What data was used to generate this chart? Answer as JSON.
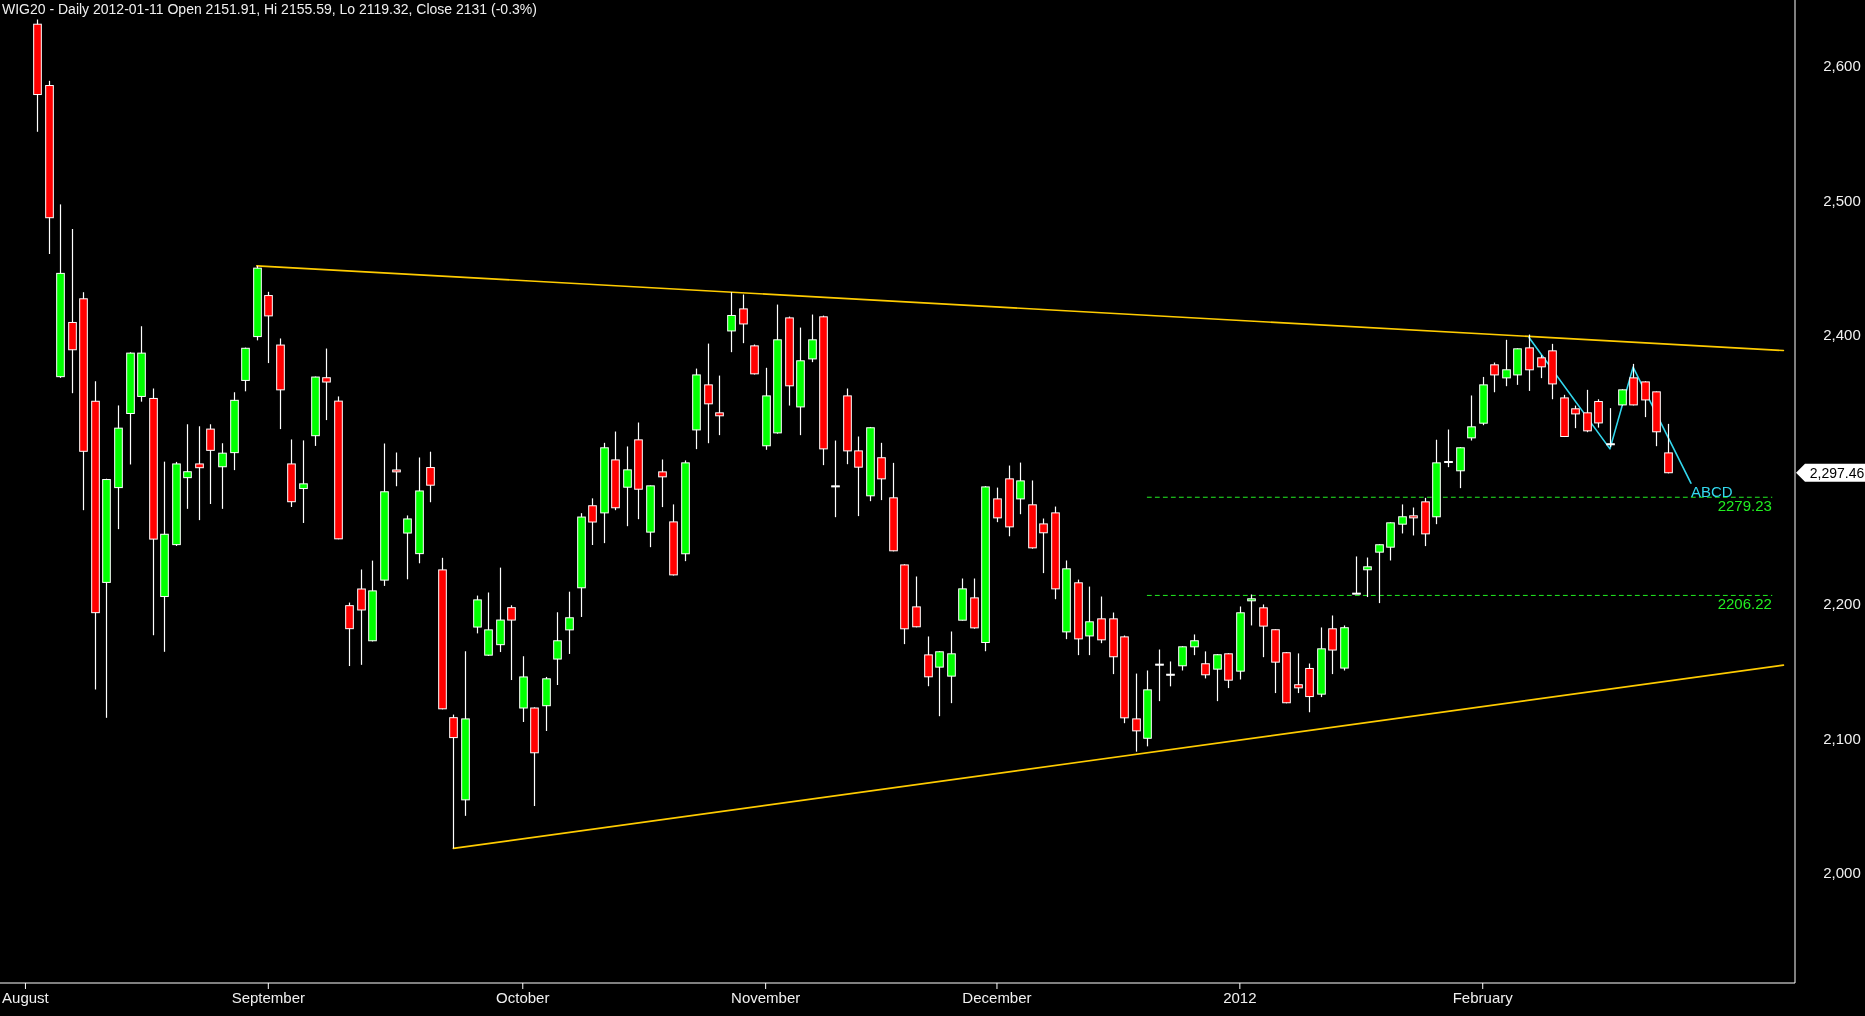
{
  "chart_data": {
    "type": "candlestick",
    "title": "WIG20 - Daily 2012-01-11 Open 2151.91, Hi 2155.59, Lo 2119.32, Close 2131 (-0.3%)",
    "categories": [
      "August",
      null,
      null,
      null,
      null,
      null,
      null,
      null,
      null,
      null,
      null,
      null,
      null,
      null,
      null,
      null,
      null,
      null,
      null,
      null,
      null,
      "September",
      null,
      null,
      null,
      null,
      null,
      null,
      null,
      null,
      null,
      null,
      null,
      null,
      null,
      null,
      null,
      null,
      null,
      null,
      null,
      null,
      null,
      "October",
      null,
      null,
      null,
      null,
      null,
      null,
      null,
      null,
      null,
      null,
      null,
      null,
      null,
      null,
      null,
      null,
      null,
      null,
      null,
      null,
      "November",
      null,
      null,
      null,
      null,
      null,
      null,
      null,
      null,
      null,
      null,
      null,
      null,
      null,
      null,
      null,
      null,
      null,
      null,
      null,
      "December",
      null,
      null,
      null,
      null,
      null,
      null,
      null,
      null,
      null,
      null,
      null,
      null,
      null,
      null,
      null,
      null,
      null,
      null,
      null,
      null,
      "2012",
      null,
      null,
      null,
      null,
      null,
      null,
      null,
      null,
      null,
      null,
      null,
      null,
      null,
      null,
      null,
      null,
      null,
      null,
      null,
      null,
      "February",
      null,
      null,
      null,
      null,
      null,
      null,
      null,
      null,
      null,
      null,
      null,
      null,
      null,
      null,
      null,
      null,
      null,
      null,
      null,
      null,
      null,
      null,
      null,
      null,
      null,
      null
    ],
    "ohlc": [
      null,
      [
        2631.0,
        2634.5,
        2551.0,
        2578.7
      ],
      [
        2585.4,
        2588.9,
        2460.1,
        2487.1
      ],
      [
        2368.9,
        2497.0,
        2368.0,
        2445.7
      ],
      [
        2409.2,
        2478.7,
        2356.6,
        2388.9
      ],
      [
        2426.8,
        2431.7,
        2269.6,
        2313.4
      ],
      [
        2350.6,
        2365.4,
        2136.2,
        2193.4
      ],
      [
        2215.9,
        2293.0,
        2115.2,
        2292.4
      ],
      [
        2286.4,
        2347.5,
        2255.5,
        2330.6
      ],
      [
        2341.5,
        2387.0,
        2303.6,
        2386.4
      ],
      [
        2354.2,
        2406.4,
        2350.3,
        2386.4
      ],
      [
        2352.7,
        2360.1,
        2176.6,
        2248.1
      ],
      [
        2205.4,
        2305.7,
        2164.3,
        2251.7
      ],
      [
        2244.0,
        2305.5,
        2243.0,
        2304.0
      ],
      [
        2293.8,
        2333.5,
        2270.6,
        2298.2
      ],
      [
        2304.0,
        2332.0,
        2262.2,
        2301.2
      ],
      [
        2329.9,
        2333.5,
        2274.2,
        2314.1
      ],
      [
        2301.9,
        2319.4,
        2270.6,
        2312.0
      ],
      [
        2312.4,
        2357.3,
        2299.4,
        2351.3
      ],
      [
        2366.1,
        2390.5,
        2358.0,
        2390.0
      ],
      [
        2398.7,
        2451.3,
        2395.9,
        2449.6
      ],
      [
        2429.2,
        2432.0,
        2379.0,
        2414.1
      ],
      [
        2392.4,
        2397.3,
        2329.9,
        2359.1
      ],
      [
        2304.0,
        2322.2,
        2272.0,
        2275.9
      ],
      [
        2285.7,
        2321.5,
        2260.1,
        2289.2
      ],
      [
        2325.0,
        2369.0,
        2317.4,
        2368.6
      ],
      [
        2368.1,
        2389.8,
        2336.6,
        2364.9
      ],
      [
        2350.7,
        2354.2,
        2248.0,
        2248.3
      ],
      [
        2198.6,
        2200.9,
        2153.7,
        2181.5
      ],
      [
        2211.0,
        2225.5,
        2154.6,
        2195.4
      ],
      [
        2172.5,
        2232.1,
        2172.0,
        2209.6
      ],
      [
        2217.6,
        2319.2,
        2213.3,
        2283.3
      ],
      [
        2299.5,
        2312.5,
        2287.4,
        2298.1
      ],
      [
        2252.6,
        2265.7,
        2218.2,
        2263.1
      ],
      [
        2237.3,
        2308.8,
        2230.1,
        2283.9
      ],
      [
        2301.3,
        2313.1,
        2275.5,
        2288.2
      ],
      [
        2225.2,
        2234.2,
        2121.5,
        2121.9
      ],
      [
        2115.3,
        2117.6,
        2018.1,
        2100.5
      ],
      [
        2054.2,
        2164.7,
        2042.3,
        2114.4
      ],
      [
        2182.7,
        2206.1,
        2178.0,
        2202.9
      ],
      [
        2161.8,
        2208.4,
        2161.2,
        2180.6
      ],
      [
        2169.6,
        2226.9,
        2164.1,
        2187.9
      ],
      [
        2197.1,
        2198.9,
        2143.3,
        2187.9
      ],
      [
        2122.5,
        2161.0,
        2112.1,
        2145.6
      ],
      [
        2122.5,
        2123.0,
        2049.6,
        2089.2
      ],
      [
        2124.2,
        2145.6,
        2105.4,
        2144.2
      ],
      [
        2158.9,
        2193.7,
        2139.6,
        2172.5
      ],
      [
        2180.6,
        2209.0,
        2162.7,
        2189.6
      ],
      [
        2211.9,
        2267.4,
        2190.2,
        2264.5
      ],
      [
        2272.9,
        2278.4,
        2243.7,
        2260.8
      ],
      [
        2267.6,
        2319.7,
        2245.1,
        2316.0
      ],
      [
        2307.0,
        2328.1,
        2269.6,
        2271.4
      ],
      [
        2286.7,
        2317.0,
        2257.7,
        2299.6
      ],
      [
        2321.9,
        2334.8,
        2262.9,
        2285.2
      ],
      [
        2253.3,
        2288.0,
        2242.1,
        2287.7
      ],
      [
        2298.1,
        2307.3,
        2271.9,
        2294.4
      ],
      [
        2260.9,
        2273.9,
        2221.0,
        2221.5
      ],
      [
        2237.2,
        2306.6,
        2231.7,
        2304.8
      ],
      [
        2329.3,
        2374.9,
        2315.0,
        2370.2
      ],
      [
        2362.8,
        2393.5,
        2319.4,
        2348.7
      ],
      [
        2342.0,
        2369.7,
        2325.4,
        2339.8
      ],
      [
        2402.9,
        2431.7,
        2387.1,
        2414.4
      ],
      [
        2419.3,
        2430.0,
        2393.8,
        2408.1
      ],
      [
        2391.8,
        2392.8,
        2370.5,
        2371.0
      ],
      [
        2317.5,
        2375.5,
        2314.5,
        2354.6
      ],
      [
        2327.1,
        2422.5,
        2326.5,
        2396.3
      ],
      [
        2412.6,
        2413.6,
        2347.4,
        2362.1
      ],
      [
        2346.4,
        2405.4,
        2325.4,
        2380.7
      ],
      [
        2382.1,
        2415.1,
        2379.7,
        2396.3
      ],
      [
        2413.4,
        2414.3,
        2303.1,
        2315.2
      ],
      [
        2287.7,
        2321.4,
        2264.4,
        2287.7
      ],
      [
        2354.6,
        2360.1,
        2303.8,
        2313.7
      ],
      [
        2313.7,
        2324.4,
        2265.2,
        2301.6
      ],
      [
        2280.3,
        2331.5,
        2276.3,
        2330.9
      ],
      [
        2308.6,
        2319.7,
        2277.1,
        2292.9
      ],
      [
        2278.8,
        2304.8,
        2239.0,
        2239.4
      ],
      [
        2228.9,
        2229.4,
        2170.0,
        2181.4
      ],
      [
        2197.7,
        2220.3,
        2182.5,
        2182.9
      ],
      [
        2162.0,
        2175.7,
        2138.7,
        2145.7
      ],
      [
        2152.9,
        2164.8,
        2116.4,
        2164.3
      ],
      [
        2146.2,
        2179.4,
        2126.1,
        2162.8
      ],
      [
        2187.8,
        2218.8,
        2187.5,
        2211.1
      ],
      [
        2204.4,
        2218.8,
        2181.5,
        2182.1
      ],
      [
        2171.2,
        2287.5,
        2164.7,
        2286.9
      ],
      [
        2278.0,
        2286.4,
        2260.7,
        2263.9
      ],
      [
        2292.9,
        2302.8,
        2250.2,
        2257.2
      ],
      [
        2278.0,
        2305.0,
        2266.6,
        2291.4
      ],
      [
        2273.6,
        2291.7,
        2241.0,
        2241.6
      ],
      [
        2259.4,
        2263.4,
        2222.8,
        2252.8
      ],
      [
        2267.6,
        2272.3,
        2203.4,
        2211.1
      ],
      [
        2179.1,
        2232.2,
        2173.7,
        2226.0
      ],
      [
        2215.6,
        2218.0,
        2161.8,
        2173.9
      ],
      [
        2176.1,
        2212.8,
        2161.8,
        2186.6
      ],
      [
        2188.8,
        2205.4,
        2170.7,
        2173.2
      ],
      [
        2188.8,
        2193.5,
        2147.7,
        2160.6
      ],
      [
        2175.4,
        2176.4,
        2111.2,
        2115.2
      ],
      [
        2114.4,
        2148.1,
        2090.0,
        2105.5
      ],
      [
        2100.0,
        2150.4,
        2094.0,
        2136.0
      ],
      [
        2155.1,
        2166.0,
        2127.6,
        2155.1
      ],
      [
        2147.6,
        2157.1,
        2138.6,
        2147.6
      ],
      [
        2153.9,
        2168.5,
        2150.4,
        2168.0
      ],
      [
        2168.0,
        2177.2,
        2161.8,
        2172.5
      ],
      [
        2155.4,
        2164.6,
        2144.5,
        2147.2
      ],
      [
        2151.4,
        2162.6,
        2127.6,
        2162.1
      ],
      [
        2162.8,
        2163.3,
        2137.3,
        2143.2
      ],
      [
        2149.9,
        2198.0,
        2143.7,
        2193.3
      ],
      [
        2202.2,
        2206.9,
        2183.9,
        2203.7
      ],
      [
        2197.0,
        2199.5,
        2160.3,
        2183.4
      ],
      [
        2180.7,
        2181.0,
        2133.6,
        2156.6
      ],
      [
        2163.6,
        2164.0,
        2126.0,
        2126.4
      ],
      [
        2139.8,
        2163.1,
        2133.6,
        2137.5
      ],
      [
        2151.91,
        2155.59,
        2119.32,
        2131
      ],
      [
        2132.8,
        2182.4,
        2130.6,
        2166.5
      ],
      [
        2181.4,
        2191.3,
        2147.7,
        2165.6
      ],
      [
        2152.2,
        2183.9,
        2150.4,
        2182.2
      ],
      [
        2207.9,
        2235.2,
        2207.5,
        2207.9
      ],
      [
        2225.3,
        2234.4,
        2205.0,
        2227.5
      ],
      [
        2238.4,
        2244.3,
        2200.5,
        2243.9
      ],
      [
        2242.1,
        2260.6,
        2232.2,
        2260.2
      ],
      [
        2259.2,
        2273.9,
        2252.3,
        2264.7
      ],
      [
        2265.4,
        2271.6,
        2250.8,
        2263.9
      ],
      [
        2275.8,
        2278.8,
        2242.9,
        2252.0
      ],
      [
        2264.7,
        2322.0,
        2259.2,
        2304.8
      ],
      [
        2305.8,
        2329.6,
        2301.6,
        2305.8
      ],
      [
        2298.9,
        2316.5,
        2286.0,
        2316.0
      ],
      [
        2323.4,
        2354.9,
        2321.4,
        2331.6
      ],
      [
        2334.3,
        2368.7,
        2332.8,
        2362.8
      ],
      [
        2377.7,
        2379.4,
        2357.3,
        2370.2
      ],
      [
        2368.0,
        2396.3,
        2361.8,
        2374.0
      ],
      [
        2370.2,
        2390.0,
        2362.8,
        2389.6
      ],
      [
        2390.3,
        2400.2,
        2358.3,
        2374.0
      ],
      [
        2382.9,
        2384.9,
        2367.8,
        2376.2
      ],
      [
        2388.1,
        2393.3,
        2352.1,
        2363.5
      ],
      [
        2353.1,
        2355.4,
        2324.0,
        2324.4
      ],
      [
        2345.0,
        2347.4,
        2330.6,
        2341.2
      ],
      [
        2342.0,
        2359.1,
        2327.6,
        2328.6
      ],
      [
        2350.4,
        2352.1,
        2331.0,
        2334.5
      ],
      [
        2319.0,
        2345.5,
        2316.5,
        2319.0
      ],
      [
        2347.9,
        2359.5,
        2347.5,
        2359.1
      ],
      [
        2368.0,
        2378.4,
        2347.5,
        2347.9
      ],
      [
        2365.0,
        2365.5,
        2338.8,
        2351.6
      ],
      [
        2357.6,
        2357.9,
        2317.2,
        2327.9
      ],
      [
        2312.2,
        2333.8,
        2297.0,
        2297.46
      ],
      null,
      null,
      null,
      null,
      null,
      null,
      null,
      null,
      null,
      null
    ],
    "series": [
      {
        "type": "line",
        "color": "#ffcc00",
        "line_style": "solid",
        "values": [
          null,
          null,
          null,
          null,
          null,
          null,
          null,
          null,
          null,
          null,
          null,
          null,
          null,
          null,
          null,
          null,
          null,
          null,
          null,
          null,
          2451.3,
          null,
          null,
          null,
          null,
          null,
          null,
          null,
          null,
          null,
          null,
          null,
          null,
          null,
          null,
          null,
          null,
          null,
          null,
          null,
          null,
          null,
          null,
          null,
          null,
          null,
          null,
          null,
          null,
          null,
          null,
          null,
          null,
          null,
          null,
          null,
          null,
          null,
          null,
          null,
          null,
          null,
          null,
          null,
          null,
          null,
          null,
          null,
          null,
          null,
          null,
          null,
          null,
          null,
          null,
          null,
          null,
          null,
          null,
          null,
          null,
          null,
          null,
          null,
          null,
          null,
          null,
          null,
          null,
          null,
          null,
          null,
          null,
          null,
          null,
          null,
          null,
          null,
          null,
          null,
          null,
          null,
          null,
          null,
          null,
          null,
          null,
          null,
          null,
          null,
          null,
          null,
          null,
          null,
          null,
          null,
          null,
          null,
          null,
          null,
          null,
          null,
          null,
          null,
          null,
          null,
          null,
          null,
          null,
          null,
          null,
          null,
          null,
          null,
          null,
          null,
          null,
          null,
          null,
          null,
          null,
          null,
          null,
          null,
          null,
          null,
          null,
          null,
          null,
          null,
          null,
          null,
          2388.3
        ]
      },
      {
        "type": "line",
        "color": "#ffcc00",
        "line_style": "solid",
        "values": [
          null,
          null,
          null,
          null,
          null,
          null,
          null,
          null,
          null,
          null,
          null,
          null,
          null,
          null,
          null,
          null,
          null,
          null,
          null,
          null,
          null,
          null,
          null,
          null,
          null,
          null,
          null,
          null,
          null,
          null,
          null,
          null,
          null,
          null,
          null,
          null,
          null,
          2018.1,
          null,
          null,
          null,
          null,
          null,
          null,
          null,
          null,
          null,
          null,
          null,
          null,
          null,
          null,
          null,
          null,
          null,
          null,
          null,
          null,
          null,
          null,
          null,
          null,
          null,
          null,
          null,
          null,
          null,
          null,
          null,
          null,
          null,
          null,
          null,
          null,
          null,
          null,
          null,
          null,
          null,
          null,
          null,
          null,
          null,
          null,
          null,
          null,
          null,
          null,
          null,
          null,
          null,
          null,
          null,
          null,
          null,
          null,
          null,
          null,
          null,
          null,
          null,
          null,
          null,
          null,
          null,
          null,
          null,
          null,
          null,
          null,
          null,
          null,
          null,
          null,
          null,
          null,
          null,
          null,
          null,
          null,
          null,
          null,
          null,
          null,
          null,
          null,
          null,
          null,
          null,
          null,
          null,
          null,
          null,
          null,
          null,
          null,
          null,
          null,
          null,
          null,
          null,
          null,
          null,
          null,
          null,
          null,
          null,
          null,
          null,
          null,
          null,
          null,
          2154.4
        ]
      },
      {
        "type": "line",
        "name": "2279.23",
        "color": "#22ee22",
        "line_style": "dashed",
        "values": [
          null,
          null,
          null,
          null,
          null,
          null,
          null,
          null,
          null,
          null,
          null,
          null,
          null,
          null,
          null,
          null,
          null,
          null,
          null,
          null,
          null,
          null,
          null,
          null,
          null,
          null,
          null,
          null,
          null,
          null,
          null,
          null,
          null,
          null,
          null,
          null,
          null,
          null,
          null,
          null,
          null,
          null,
          null,
          null,
          null,
          null,
          null,
          null,
          null,
          null,
          null,
          null,
          null,
          null,
          null,
          null,
          null,
          null,
          null,
          null,
          null,
          null,
          null,
          null,
          null,
          null,
          null,
          null,
          null,
          null,
          null,
          null,
          null,
          null,
          null,
          null,
          null,
          null,
          null,
          null,
          null,
          null,
          null,
          null,
          null,
          null,
          null,
          null,
          null,
          null,
          null,
          null,
          null,
          null,
          null,
          null,
          null,
          2279.23,
          null,
          null,
          null,
          null,
          null,
          null,
          null,
          null,
          null,
          null,
          null,
          null,
          null,
          null,
          null,
          null,
          null,
          null,
          null,
          null,
          null,
          null,
          null,
          null,
          null,
          null,
          null,
          null,
          null,
          null,
          null,
          null,
          null,
          null,
          null,
          null,
          null,
          null,
          null,
          null,
          null,
          null,
          null,
          null,
          null,
          null,
          null,
          null,
          null,
          null,
          null,
          null,
          null,
          2279.23,
          null
        ]
      },
      {
        "type": "line",
        "name": "2206.22",
        "color": "#22ee22",
        "line_style": "dashed",
        "values": [
          null,
          null,
          null,
          null,
          null,
          null,
          null,
          null,
          null,
          null,
          null,
          null,
          null,
          null,
          null,
          null,
          null,
          null,
          null,
          null,
          null,
          null,
          null,
          null,
          null,
          null,
          null,
          null,
          null,
          null,
          null,
          null,
          null,
          null,
          null,
          null,
          null,
          null,
          null,
          null,
          null,
          null,
          null,
          null,
          null,
          null,
          null,
          null,
          null,
          null,
          null,
          null,
          null,
          null,
          null,
          null,
          null,
          null,
          null,
          null,
          null,
          null,
          null,
          null,
          null,
          null,
          null,
          null,
          null,
          null,
          null,
          null,
          null,
          null,
          null,
          null,
          null,
          null,
          null,
          null,
          null,
          null,
          null,
          null,
          null,
          null,
          null,
          null,
          null,
          null,
          null,
          null,
          null,
          null,
          null,
          null,
          null,
          2206.22,
          null,
          null,
          null,
          null,
          null,
          null,
          null,
          null,
          null,
          null,
          null,
          null,
          null,
          null,
          null,
          null,
          null,
          null,
          null,
          null,
          null,
          null,
          null,
          null,
          null,
          null,
          null,
          null,
          null,
          null,
          null,
          null,
          null,
          null,
          null,
          null,
          null,
          null,
          null,
          null,
          null,
          null,
          null,
          null,
          null,
          null,
          null,
          null,
          null,
          null,
          null,
          null,
          null,
          2206.22,
          null
        ]
      },
      {
        "type": "line",
        "name": "ABCD",
        "color": "#33d8ee",
        "line_style": "solid",
        "values": [
          null,
          null,
          null,
          null,
          null,
          null,
          null,
          null,
          null,
          null,
          null,
          null,
          null,
          null,
          null,
          null,
          null,
          null,
          null,
          null,
          null,
          null,
          null,
          null,
          null,
          null,
          null,
          null,
          null,
          null,
          null,
          null,
          null,
          null,
          null,
          null,
          null,
          null,
          null,
          null,
          null,
          null,
          null,
          null,
          null,
          null,
          null,
          null,
          null,
          null,
          null,
          null,
          null,
          null,
          null,
          null,
          null,
          null,
          null,
          null,
          null,
          null,
          null,
          null,
          null,
          null,
          null,
          null,
          null,
          null,
          null,
          null,
          null,
          null,
          null,
          null,
          null,
          null,
          null,
          null,
          null,
          null,
          null,
          null,
          null,
          null,
          null,
          null,
          null,
          null,
          null,
          null,
          null,
          null,
          null,
          null,
          null,
          null,
          null,
          null,
          null,
          null,
          null,
          null,
          null,
          null,
          null,
          null,
          null,
          null,
          null,
          null,
          null,
          null,
          null,
          null,
          null,
          null,
          null,
          null,
          null,
          null,
          null,
          null,
          null,
          null,
          null,
          null,
          null,
          null,
          2398,
          null,
          null,
          null,
          null,
          null,
          null,
          2315.2,
          null,
          2376,
          null,
          null,
          null,
          null,
          2289.7,
          null,
          null,
          null,
          null,
          null,
          null,
          null,
          null
        ]
      }
    ],
    "ylim": [
      1918,
      2649
    ],
    "yticks": [
      {
        "value": 2000,
        "label": "2,000"
      },
      {
        "value": 2100,
        "label": "2,100"
      },
      {
        "value": 2200,
        "label": "2,200"
      },
      {
        "value": 2297.46,
        "label": "2,297.46"
      },
      {
        "value": 2400,
        "label": "2,400"
      },
      {
        "value": 2500,
        "label": "2,500"
      },
      {
        "value": 2600,
        "label": "2,600"
      }
    ]
  }
}
